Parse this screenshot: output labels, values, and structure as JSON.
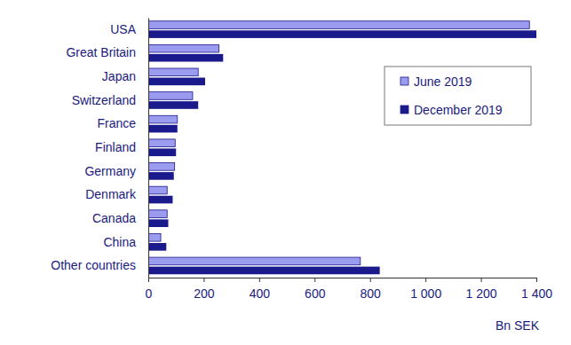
{
  "chart_data": {
    "type": "bar",
    "orientation": "horizontal",
    "categories": [
      "USA",
      "Great Britain",
      "Japan",
      "Switzerland",
      "France",
      "Finland",
      "Germany",
      "Denmark",
      "Canada",
      "China",
      "Other countries"
    ],
    "series": [
      {
        "name": "June 2019",
        "color": "#9b9bef",
        "values": [
          1375,
          255,
          180,
          160,
          105,
          97,
          95,
          68,
          68,
          45,
          765
        ]
      },
      {
        "name": "December 2019",
        "color": "#1a1a8c",
        "values": [
          1400,
          270,
          205,
          180,
          105,
          100,
          92,
          88,
          72,
          65,
          835
        ]
      }
    ],
    "x_label": "Bn SEK",
    "xlim": [
      0,
      1400
    ],
    "xticks": [
      0,
      200,
      400,
      600,
      800,
      {
        "value": 1000,
        "label": "1 000"
      },
      {
        "value": 1200,
        "label": "1 200"
      },
      {
        "value": 1400,
        "label": "1 400"
      }
    ],
    "grid": false,
    "legend": "upper right"
  }
}
